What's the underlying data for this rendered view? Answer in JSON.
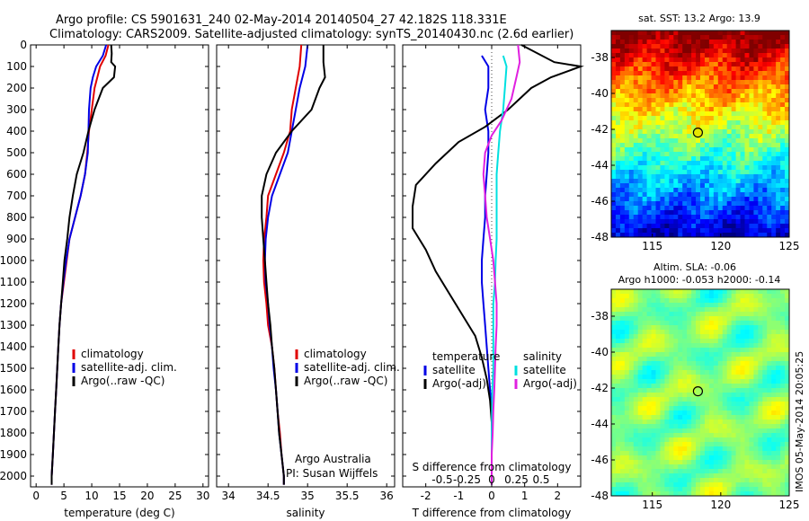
{
  "header": {
    "title_line1": "Argo profile: CS 5901631_240 02-May-2014 20140504_27 42.182S 118.331E",
    "title_line2": "Climatology: CARS2009. Satellite-adjusted climatology: synTS_20140430.nc (2.6d earlier)"
  },
  "colors": {
    "climatology": "#e00000",
    "satellite": "#0000e6",
    "argo": "#000000",
    "cyan": "#00e0e0",
    "magenta": "#e020e0"
  },
  "credit": {
    "line1": "Argo Australia",
    "line2": "PI: Susan Wijffels"
  },
  "side_stamp": "IMOS 05-May-2014 20:05:25",
  "chart_data": [
    {
      "type": "line",
      "xlabel": "temperature (deg C)",
      "ylim": [
        2050,
        0
      ],
      "xlim": [
        -1,
        31
      ],
      "xticks": [
        0,
        5,
        10,
        15,
        20,
        25,
        30
      ],
      "yticks": [
        0,
        100,
        200,
        300,
        400,
        500,
        600,
        700,
        800,
        900,
        1000,
        1100,
        1200,
        1300,
        1400,
        1500,
        1600,
        1700,
        1800,
        1900,
        2000
      ],
      "legend": [
        "climatology",
        "satellite-adj. clim.",
        "Argo(..raw -QC)"
      ],
      "series": [
        {
          "name": "climatology",
          "color": "#e00000",
          "points": [
            [
              13.0,
              0
            ],
            [
              12.5,
              50
            ],
            [
              11.5,
              100
            ],
            [
              11,
              150
            ],
            [
              10.5,
              200
            ],
            [
              10,
              300
            ],
            [
              9.5,
              400
            ],
            [
              9.2,
              500
            ],
            [
              8.8,
              600
            ],
            [
              8,
              700
            ],
            [
              7,
              800
            ],
            [
              6,
              900
            ],
            [
              5.5,
              1000
            ],
            [
              5,
              1100
            ],
            [
              4.5,
              1200
            ],
            [
              4.2,
              1300
            ],
            [
              4,
              1400
            ],
            [
              3.8,
              1500
            ],
            [
              3.6,
              1600
            ],
            [
              3.4,
              1700
            ],
            [
              3.2,
              1800
            ],
            [
              3,
              1900
            ],
            [
              2.8,
              2000
            ],
            [
              2.8,
              2040
            ]
          ]
        },
        {
          "name": "satellite-adj. clim.",
          "color": "#0000e6",
          "points": [
            [
              12.6,
              0
            ],
            [
              12,
              50
            ],
            [
              10.8,
              100
            ],
            [
              10.2,
              150
            ],
            [
              9.8,
              200
            ],
            [
              9.5,
              300
            ],
            [
              9.4,
              400
            ],
            [
              9.3,
              500
            ],
            [
              8.8,
              600
            ],
            [
              8,
              700
            ],
            [
              7,
              800
            ],
            [
              6,
              900
            ],
            [
              5.4,
              1000
            ],
            [
              4.9,
              1100
            ],
            [
              4.5,
              1200
            ],
            [
              4.2,
              1300
            ],
            [
              4,
              1400
            ],
            [
              3.8,
              1500
            ],
            [
              3.6,
              1600
            ],
            [
              3.4,
              1700
            ],
            [
              3.2,
              1800
            ],
            [
              3,
              1900
            ],
            [
              2.8,
              2000
            ],
            [
              2.8,
              2040
            ]
          ]
        },
        {
          "name": "Argo(..raw -QC)",
          "color": "#000000",
          "points": [
            [
              13.5,
              0
            ],
            [
              13.6,
              40
            ],
            [
              13.5,
              80
            ],
            [
              14.2,
              100
            ],
            [
              14,
              150
            ],
            [
              12,
              200
            ],
            [
              10.5,
              300
            ],
            [
              9.4,
              400
            ],
            [
              8.5,
              500
            ],
            [
              7.3,
              600
            ],
            [
              6.6,
              700
            ],
            [
              6,
              800
            ],
            [
              5.6,
              900
            ],
            [
              5.1,
              1000
            ],
            [
              4.8,
              1100
            ],
            [
              4.5,
              1200
            ],
            [
              4.2,
              1300
            ],
            [
              4,
              1400
            ],
            [
              3.8,
              1500
            ],
            [
              3.6,
              1600
            ],
            [
              3.4,
              1700
            ],
            [
              3.2,
              1800
            ],
            [
              3,
              1900
            ],
            [
              2.8,
              2000
            ],
            [
              2.8,
              2040
            ]
          ]
        }
      ]
    },
    {
      "type": "line",
      "xlabel": "salinity",
      "ylim": [
        2050,
        0
      ],
      "xlim": [
        33.85,
        36.1
      ],
      "xticks": [
        34,
        34.5,
        35,
        35.5,
        36
      ],
      "legend": [
        "climatology",
        "satellite-adj. clim.",
        "Argo(..raw -QC)"
      ],
      "series": [
        {
          "name": "climatology",
          "color": "#e00000",
          "points": [
            [
              34.92,
              0
            ],
            [
              34.9,
              100
            ],
            [
              34.85,
              200
            ],
            [
              34.8,
              300
            ],
            [
              34.78,
              400
            ],
            [
              34.7,
              500
            ],
            [
              34.6,
              600
            ],
            [
              34.5,
              700
            ],
            [
              34.48,
              800
            ],
            [
              34.45,
              900
            ],
            [
              34.44,
              1000
            ],
            [
              34.45,
              1100
            ],
            [
              34.48,
              1200
            ],
            [
              34.5,
              1300
            ],
            [
              34.55,
              1400
            ],
            [
              34.58,
              1500
            ],
            [
              34.6,
              1600
            ],
            [
              34.62,
              1700
            ],
            [
              34.65,
              1800
            ],
            [
              34.67,
              1900
            ],
            [
              34.7,
              2000
            ],
            [
              34.7,
              2040
            ]
          ]
        },
        {
          "name": "satellite-adj. clim.",
          "color": "#0000e6",
          "points": [
            [
              35.0,
              0
            ],
            [
              34.97,
              100
            ],
            [
              34.9,
              200
            ],
            [
              34.85,
              300
            ],
            [
              34.8,
              400
            ],
            [
              34.75,
              500
            ],
            [
              34.65,
              600
            ],
            [
              34.55,
              700
            ],
            [
              34.5,
              800
            ],
            [
              34.47,
              900
            ],
            [
              34.46,
              1000
            ],
            [
              34.47,
              1100
            ],
            [
              34.5,
              1200
            ],
            [
              34.52,
              1300
            ],
            [
              34.55,
              1400
            ],
            [
              34.57,
              1500
            ],
            [
              34.6,
              1600
            ],
            [
              34.62,
              1700
            ],
            [
              34.64,
              1800
            ],
            [
              34.67,
              1900
            ],
            [
              34.7,
              2000
            ],
            [
              34.7,
              2040
            ]
          ]
        },
        {
          "name": "Argo(..raw -QC)",
          "color": "#000000",
          "points": [
            [
              35.2,
              0
            ],
            [
              35.2,
              80
            ],
            [
              35.22,
              150
            ],
            [
              35.15,
              200
            ],
            [
              35.05,
              300
            ],
            [
              34.8,
              400
            ],
            [
              34.6,
              500
            ],
            [
              34.48,
              600
            ],
            [
              34.42,
              700
            ],
            [
              34.42,
              800
            ],
            [
              34.44,
              900
            ],
            [
              34.46,
              1000
            ],
            [
              34.48,
              1100
            ],
            [
              34.5,
              1200
            ],
            [
              34.53,
              1300
            ],
            [
              34.55,
              1400
            ],
            [
              34.58,
              1500
            ],
            [
              34.6,
              1600
            ],
            [
              34.62,
              1700
            ],
            [
              34.64,
              1800
            ],
            [
              34.67,
              1900
            ],
            [
              34.7,
              2000
            ],
            [
              34.7,
              2040
            ]
          ]
        }
      ]
    },
    {
      "type": "line",
      "xlabel": "T difference from climatology",
      "xlabel_top": "S difference from climatology",
      "ylim": [
        2050,
        0
      ],
      "xlim": [
        -2.7,
        2.7
      ],
      "xticks": [
        -2,
        -1,
        0,
        1,
        2
      ],
      "xticks_top": [
        -0.5,
        -0.25,
        0,
        0.25,
        0.5
      ],
      "legend_temperature": [
        "temperature",
        "satellite",
        "Argo(-adj)"
      ],
      "legend_salinity": [
        "salinity",
        "satellite",
        "Argo(-adj)"
      ],
      "series": [
        {
          "name": "temperature satellite",
          "color": "#0000e6",
          "points": [
            [
              -0.3,
              50
            ],
            [
              -0.1,
              100
            ],
            [
              -0.1,
              200
            ],
            [
              -0.2,
              300
            ],
            [
              -0.1,
              400
            ],
            [
              -0.1,
              500
            ],
            [
              -0.15,
              600
            ],
            [
              -0.2,
              700
            ],
            [
              -0.2,
              800
            ],
            [
              -0.25,
              900
            ],
            [
              -0.3,
              1000
            ],
            [
              -0.3,
              1100
            ],
            [
              -0.25,
              1200
            ],
            [
              -0.2,
              1300
            ],
            [
              -0.15,
              1400
            ],
            [
              -0.1,
              1500
            ],
            [
              -0.05,
              1600
            ],
            [
              0,
              1700
            ],
            [
              0,
              1800
            ],
            [
              0,
              1900
            ],
            [
              0,
              2000
            ],
            [
              0,
              2040
            ]
          ]
        },
        {
          "name": "temperature Argo(-adj)",
          "color": "#000000",
          "points": [
            [
              0.9,
              0
            ],
            [
              1.9,
              80
            ],
            [
              2.7,
              100
            ],
            [
              1.8,
              150
            ],
            [
              1.2,
              200
            ],
            [
              0.5,
              300
            ],
            [
              -0.2,
              380
            ],
            [
              -1,
              450
            ],
            [
              -1.7,
              550
            ],
            [
              -2.3,
              650
            ],
            [
              -2.4,
              750
            ],
            [
              -2.4,
              850
            ],
            [
              -2,
              950
            ],
            [
              -1.7,
              1050
            ],
            [
              -1.3,
              1150
            ],
            [
              -0.9,
              1250
            ],
            [
              -0.5,
              1350
            ],
            [
              -0.3,
              1450
            ],
            [
              -0.15,
              1550
            ],
            [
              -0.05,
              1650
            ],
            [
              0,
              1750
            ],
            [
              0,
              2040
            ]
          ]
        },
        {
          "name": "salinity satellite",
          "color": "#00e0e0",
          "points": [
            [
              0.35,
              50
            ],
            [
              0.45,
              100
            ],
            [
              0.4,
              200
            ],
            [
              0.35,
              300
            ],
            [
              0.25,
              400
            ],
            [
              0.2,
              500
            ],
            [
              0.15,
              600
            ],
            [
              0.15,
              700
            ],
            [
              0.15,
              800
            ],
            [
              0.15,
              900
            ],
            [
              0.12,
              1000
            ],
            [
              0.1,
              1100
            ],
            [
              0.05,
              1200
            ],
            [
              0.05,
              1300
            ],
            [
              0.05,
              1400
            ],
            [
              0.05,
              1500
            ],
            [
              0.02,
              1600
            ],
            [
              0,
              1800
            ],
            [
              0,
              2040
            ]
          ]
        },
        {
          "name": "salinity Argo(-adj)",
          "color": "#e020e0",
          "points": [
            [
              0.8,
              0
            ],
            [
              0.85,
              80
            ],
            [
              0.75,
              150
            ],
            [
              0.6,
              250
            ],
            [
              0.3,
              350
            ],
            [
              0,
              420
            ],
            [
              -0.2,
              500
            ],
            [
              -0.25,
              600
            ],
            [
              -0.2,
              700
            ],
            [
              -0.15,
              800
            ],
            [
              -0.05,
              900
            ],
            [
              0.05,
              1000
            ],
            [
              0.1,
              1100
            ],
            [
              0.15,
              1200
            ],
            [
              0.15,
              1300
            ],
            [
              0.12,
              1400
            ],
            [
              0.1,
              1500
            ],
            [
              0.08,
              1600
            ],
            [
              0.05,
              1700
            ],
            [
              0.03,
              1800
            ],
            [
              0,
              1900
            ],
            [
              0,
              2040
            ]
          ]
        }
      ]
    },
    {
      "type": "heatmap",
      "title": "sat. SST: 13.2  Argo: 13.9",
      "xlim": [
        112,
        125
      ],
      "ylim": [
        -48,
        -36.5
      ],
      "xticks": [
        115,
        120,
        125
      ],
      "yticks": [
        -38,
        -40,
        -42,
        -44,
        -46,
        -48
      ],
      "marker": [
        118.33,
        -42.18
      ]
    },
    {
      "type": "heatmap",
      "title_line1": "Altim. SLA: -0.06",
      "title_line2": "Argo h1000: -0.053 h2000: -0.14",
      "xlim": [
        112,
        125
      ],
      "ylim": [
        -48,
        -36.5
      ],
      "xticks": [
        115,
        120,
        125
      ],
      "yticks": [
        -38,
        -40,
        -42,
        -44,
        -46,
        -48
      ],
      "marker": [
        118.33,
        -42.18
      ]
    }
  ]
}
